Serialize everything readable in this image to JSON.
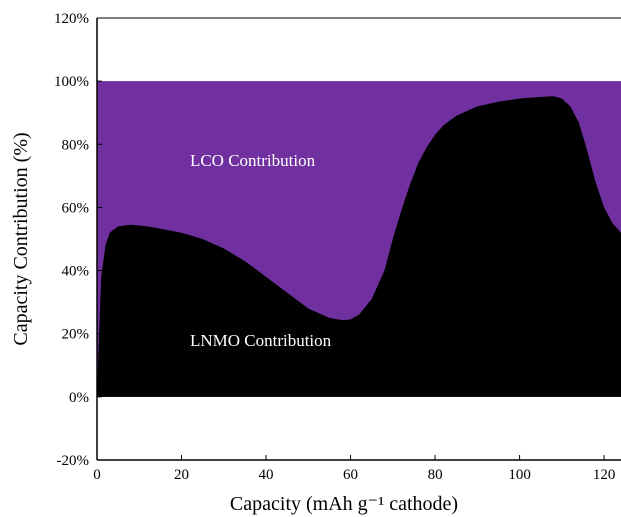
{
  "chart_data": {
    "type": "area",
    "xlabel": "Capacity (mAh g⁻¹ cathode)",
    "ylabel": "Capacity Contribution (%)",
    "xlim": [
      0,
      124
    ],
    "ylim": [
      -20,
      120
    ],
    "x_ticks": [
      0,
      20,
      40,
      60,
      80,
      100,
      120
    ],
    "y_ticks": [
      -20,
      0,
      20,
      40,
      60,
      80,
      100,
      120
    ],
    "y_tick_labels": [
      "-20%",
      "0%",
      "20%",
      "40%",
      "60%",
      "80%",
      "100%",
      "120%"
    ],
    "grid": false,
    "series": [
      {
        "color": "#000000",
        "x": [
          0,
          0.5,
          1,
          2,
          3,
          5,
          8,
          12,
          16,
          20,
          25,
          30,
          35,
          40,
          45,
          50,
          55,
          58,
          60,
          62,
          65,
          68,
          70,
          72,
          74,
          76,
          78,
          80,
          82,
          85,
          90,
          95,
          100,
          105,
          108,
          110,
          112,
          114,
          116,
          118,
          120,
          122,
          124
        ],
        "values": [
          0,
          20,
          38,
          48,
          52,
          54,
          54.5,
          54,
          53,
          52,
          50,
          47,
          43,
          38,
          33,
          28,
          25,
          24.3,
          24.5,
          26,
          31,
          40,
          50,
          59,
          67,
          74,
          79,
          83,
          86,
          89,
          92,
          93.5,
          94.5,
          95,
          95.2,
          94.5,
          92,
          87,
          78,
          68,
          60,
          55,
          52
        ]
      },
      {
        "color": "#7030a0",
        "x": [
          0,
          124
        ],
        "values": [
          100,
          100
        ]
      }
    ],
    "annotations": [
      {
        "text": "LCO Contribution",
        "x": 22,
        "y": 75
      },
      {
        "text": "LNMO Contribution",
        "x": 22,
        "y": 18
      }
    ]
  }
}
